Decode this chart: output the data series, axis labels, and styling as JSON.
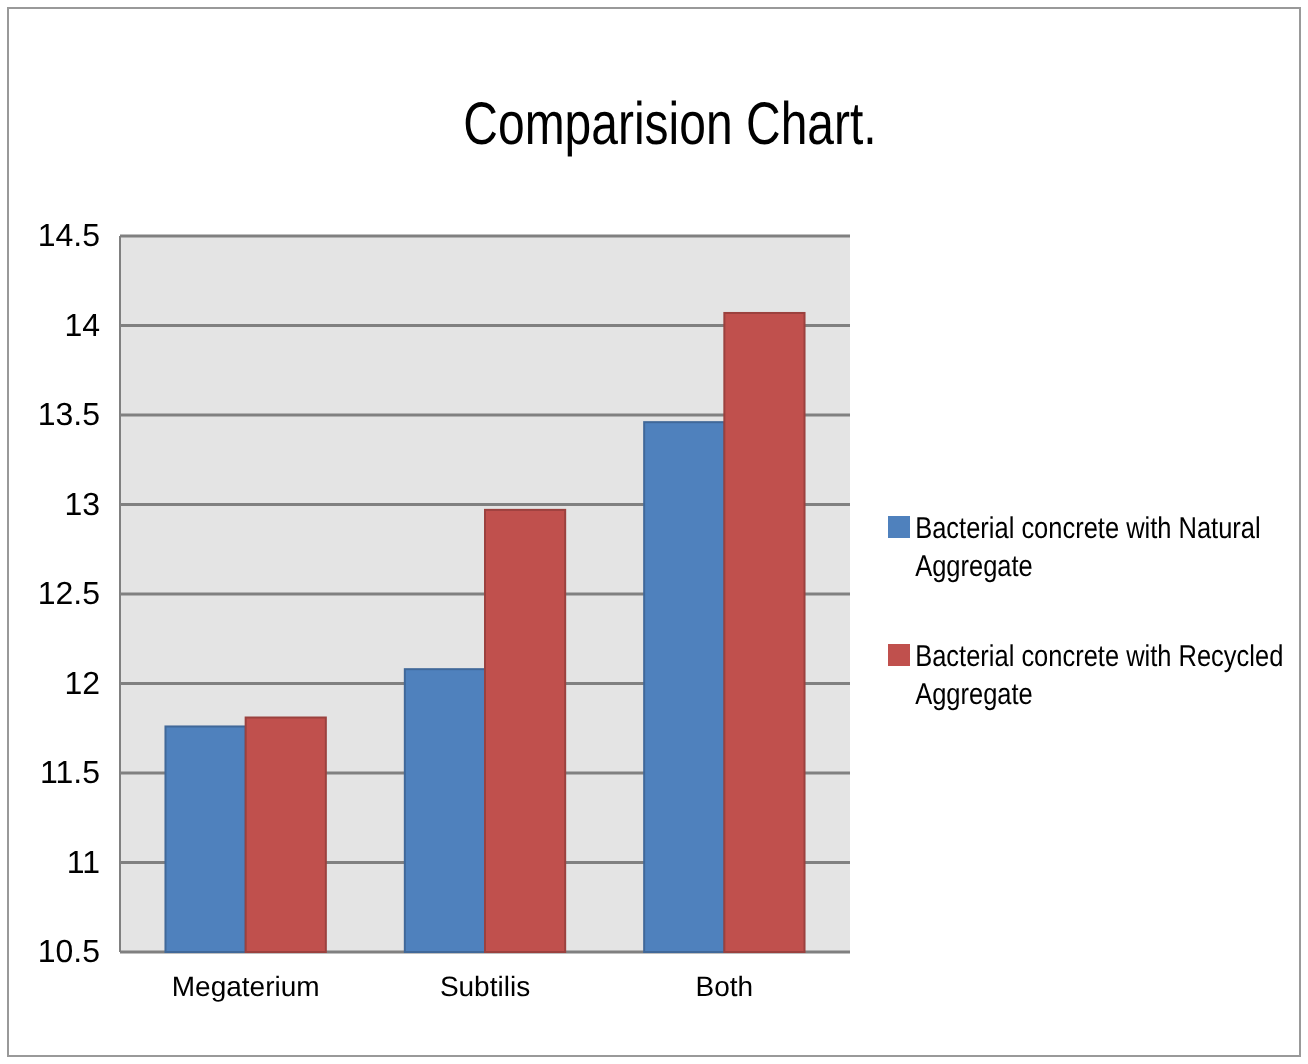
{
  "chart_data": {
    "type": "bar",
    "title": "Comparision Chart.",
    "categories": [
      "Megaterium",
      "Subtilis",
      "Both"
    ],
    "series": [
      {
        "name": "Bacterial concrete with Natural Aggregate",
        "color": "#4f81bd",
        "values": [
          11.76,
          12.08,
          13.46
        ]
      },
      {
        "name": "Bacterial concrete with Recycled Aggregate",
        "color": "#c0504d",
        "values": [
          11.81,
          12.97,
          14.07
        ]
      }
    ],
    "ylim": [
      10.5,
      14.5
    ],
    "yticks": [
      10.5,
      11,
      11.5,
      12,
      12.5,
      13,
      13.5,
      14,
      14.5
    ],
    "grid": "y",
    "legend": "right"
  }
}
